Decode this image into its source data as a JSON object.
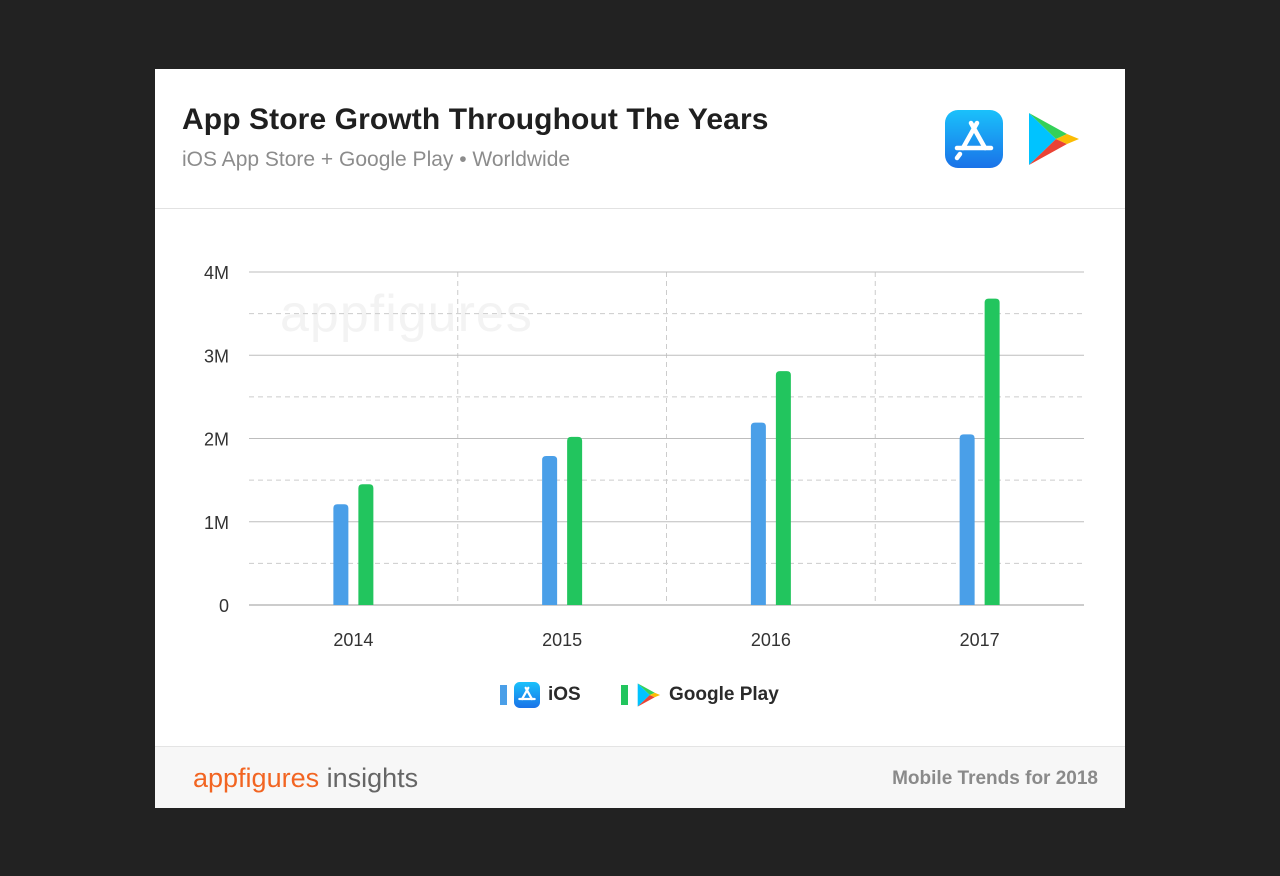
{
  "header": {
    "title": "App Store Growth Throughout The Years",
    "subtitle": "iOS App Store + Google Play • Worldwide"
  },
  "watermark": "appfigures",
  "colors": {
    "ios": "#4a9fe8",
    "google_play": "#22c55e",
    "brand": "#f26522"
  },
  "icons": {
    "ios": "app-store-icon",
    "google_play": "google-play-icon"
  },
  "chart_data": {
    "type": "bar",
    "categories": [
      "2014",
      "2015",
      "2016",
      "2017"
    ],
    "series": [
      {
        "name": "iOS",
        "values": [
          1.21,
          1.79,
          2.19,
          2.05
        ]
      },
      {
        "name": "Google Play",
        "values": [
          1.45,
          2.02,
          2.81,
          3.68
        ]
      }
    ],
    "title": "App Store Growth Throughout The Years",
    "subtitle": "iOS App Store + Google Play • Worldwide",
    "ylim": [
      0,
      4
    ],
    "yticks": [
      0,
      1,
      2,
      3,
      4
    ],
    "ytick_labels": [
      "0",
      "1M",
      "2M",
      "3M",
      "4M"
    ],
    "grid": true,
    "legend": "bottom-center"
  },
  "legend": {
    "ios": "iOS",
    "google_play": "Google Play"
  },
  "footer": {
    "brand_main": "appfigures",
    "brand_suffix": " insights",
    "note": "Mobile Trends for 2018"
  }
}
